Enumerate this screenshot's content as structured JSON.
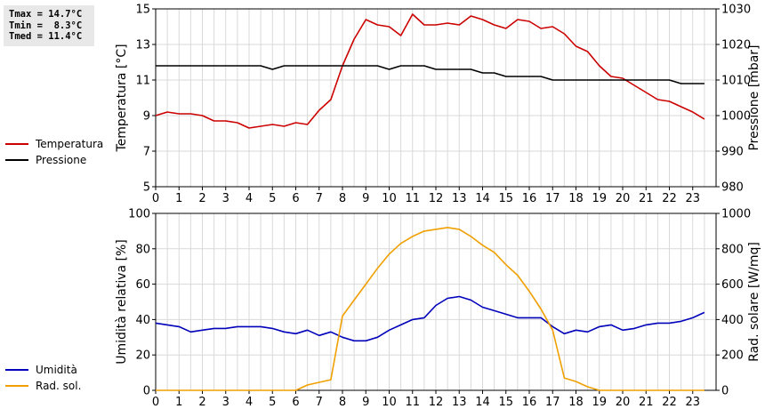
{
  "stats": {
    "tmax": "Tmax = 14.7°C",
    "tmin": "Tmin =  8.3°C",
    "tmed": "Tmed = 11.4°C"
  },
  "colors": {
    "temperature": "#cc0000",
    "pressure": "#000000",
    "humidity": "#0000bb",
    "radiation": "#f0a000",
    "grid": "#d9d9d9"
  },
  "chart_data": [
    {
      "type": "line",
      "xlabel": "",
      "ylabel": "Temperatura [°C]",
      "y2label": "Pressione [mbar]",
      "xlim": [
        0,
        24
      ],
      "xticks": [
        "0",
        "1",
        "2",
        "3",
        "4",
        "5",
        "6",
        "7",
        "8",
        "9",
        "10",
        "11",
        "12",
        "13",
        "14",
        "15",
        "16",
        "17",
        "18",
        "19",
        "20",
        "21",
        "22",
        "23"
      ],
      "ylim": [
        5,
        15
      ],
      "yticks": [
        "5",
        "7",
        "9",
        "11",
        "13",
        "15"
      ],
      "y2lim": [
        980,
        1030
      ],
      "y2ticks": [
        "980",
        "990",
        "1000",
        "1010",
        "1020",
        "1030"
      ],
      "grid": true,
      "legend_placement": "left",
      "series": [
        {
          "name": "Temperatura",
          "axis": "left",
          "color": "#cc0000",
          "x": [
            0,
            0.5,
            1,
            1.5,
            2,
            2.5,
            3,
            3.5,
            4,
            4.5,
            5,
            5.5,
            6,
            6.5,
            7,
            7.5,
            8,
            8.5,
            9,
            9.5,
            10,
            10.5,
            11,
            11.5,
            12,
            12.5,
            13,
            13.5,
            14,
            14.5,
            15,
            15.5,
            16,
            16.5,
            17,
            17.5,
            18,
            18.5,
            19,
            19.5,
            20,
            20.5,
            21,
            21.5,
            22,
            22.5,
            23,
            23.5
          ],
          "y": [
            9.0,
            9.2,
            9.1,
            9.1,
            9.0,
            8.7,
            8.7,
            8.6,
            8.3,
            8.4,
            8.5,
            8.4,
            8.6,
            8.5,
            9.3,
            9.9,
            11.8,
            13.3,
            14.4,
            14.1,
            14.0,
            13.5,
            14.7,
            14.1,
            14.1,
            14.2,
            14.1,
            14.6,
            14.4,
            14.1,
            13.9,
            14.4,
            14.3,
            13.9,
            14.0,
            13.6,
            12.9,
            12.6,
            11.8,
            11.2,
            11.1,
            10.7,
            10.3,
            9.9,
            9.8,
            9.5,
            9.2,
            8.8
          ]
        },
        {
          "name": "Pressione",
          "axis": "right",
          "color": "#000000",
          "x": [
            0,
            0.5,
            1,
            1.5,
            2,
            2.5,
            3,
            3.5,
            4,
            4.5,
            5,
            5.5,
            6,
            6.5,
            7,
            7.5,
            8,
            8.5,
            9,
            9.5,
            10,
            10.5,
            11,
            11.5,
            12,
            12.5,
            13,
            13.5,
            14,
            14.5,
            15,
            15.5,
            16,
            16.5,
            17,
            17.5,
            18,
            18.5,
            19,
            19.5,
            20,
            20.5,
            21,
            21.5,
            22,
            22.5,
            23,
            23.5
          ],
          "y": [
            1014,
            1014,
            1014,
            1014,
            1014,
            1014,
            1014,
            1014,
            1014,
            1014,
            1013,
            1014,
            1014,
            1014,
            1014,
            1014,
            1014,
            1014,
            1014,
            1014,
            1013,
            1014,
            1014,
            1014,
            1013,
            1013,
            1013,
            1013,
            1012,
            1012,
            1011,
            1011,
            1011,
            1011,
            1010,
            1010,
            1010,
            1010,
            1010,
            1010,
            1010,
            1010,
            1010,
            1010,
            1010,
            1009,
            1009,
            1009
          ]
        }
      ]
    },
    {
      "type": "line",
      "xlabel": "",
      "ylabel": "Umidità relativa [%]",
      "y2label": "Rad. solare [W/mq]",
      "xlim": [
        0,
        24
      ],
      "xticks": [
        "0",
        "1",
        "2",
        "3",
        "4",
        "5",
        "6",
        "7",
        "8",
        "9",
        "10",
        "11",
        "12",
        "13",
        "14",
        "15",
        "16",
        "17",
        "18",
        "19",
        "20",
        "21",
        "22",
        "23"
      ],
      "ylim": [
        0,
        100
      ],
      "yticks": [
        "0",
        "20",
        "40",
        "60",
        "80",
        "100"
      ],
      "y2lim": [
        0,
        1000
      ],
      "y2ticks": [
        "0",
        "200",
        "400",
        "600",
        "800",
        "1000"
      ],
      "grid": true,
      "legend_placement": "left",
      "series": [
        {
          "name": "Umidità",
          "axis": "left",
          "color": "#0000bb",
          "x": [
            0,
            0.5,
            1,
            1.5,
            2,
            2.5,
            3,
            3.5,
            4,
            4.5,
            5,
            5.5,
            6,
            6.5,
            7,
            7.5,
            8,
            8.5,
            9,
            9.5,
            10,
            10.5,
            11,
            11.5,
            12,
            12.5,
            13,
            13.5,
            14,
            14.5,
            15,
            15.5,
            16,
            16.5,
            17,
            17.5,
            18,
            18.5,
            19,
            19.5,
            20,
            20.5,
            21,
            21.5,
            22,
            22.5,
            23,
            23.5
          ],
          "y": [
            38,
            37,
            36,
            33,
            34,
            35,
            35,
            36,
            36,
            36,
            35,
            33,
            32,
            34,
            31,
            33,
            30,
            28,
            28,
            30,
            34,
            37,
            40,
            41,
            48,
            52,
            53,
            51,
            47,
            45,
            43,
            41,
            41,
            41,
            36,
            32,
            34,
            33,
            36,
            37,
            34,
            35,
            37,
            38,
            38,
            39,
            41,
            44
          ]
        },
        {
          "name": "Rad. sol.",
          "axis": "right",
          "color": "#f0a000",
          "x": [
            0,
            0.5,
            1,
            1.5,
            2,
            2.5,
            3,
            3.5,
            4,
            4.5,
            5,
            5.5,
            6,
            6.5,
            7,
            7.5,
            8,
            8.5,
            9,
            9.5,
            10,
            10.5,
            11,
            11.5,
            12,
            12.5,
            13,
            13.5,
            14,
            14.5,
            15,
            15.5,
            16,
            16.5,
            17,
            17.5,
            18,
            18.5,
            19,
            19.5,
            20,
            20.5,
            21,
            21.5,
            22,
            22.5,
            23,
            23.5
          ],
          "y": [
            0,
            0,
            0,
            0,
            0,
            0,
            0,
            0,
            0,
            0,
            0,
            0,
            0,
            30,
            45,
            60,
            420,
            510,
            600,
            690,
            770,
            830,
            870,
            900,
            910,
            920,
            910,
            870,
            820,
            780,
            710,
            650,
            560,
            460,
            340,
            70,
            50,
            20,
            0,
            0,
            0,
            0,
            0,
            0,
            0,
            0,
            0,
            0
          ]
        }
      ]
    }
  ]
}
